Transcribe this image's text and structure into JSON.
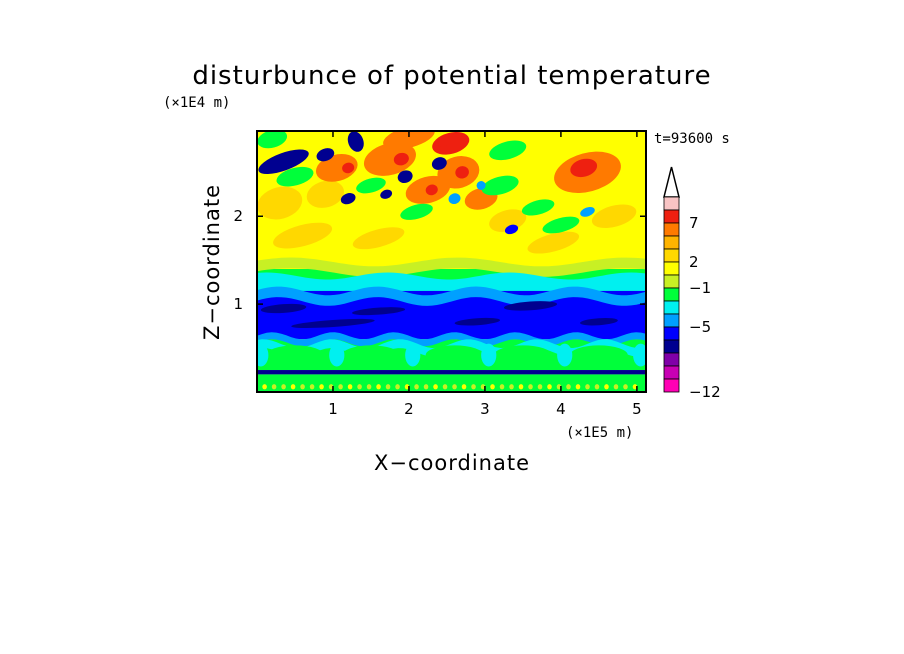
{
  "chart_data": {
    "type": "heatmap",
    "title": "disturbunce of potential temperature",
    "time_label": "t=93600 s",
    "xlabel": "X−coordinate",
    "ylabel": "Z−coordinate",
    "x_scale_label": "(×1E5 m)",
    "y_scale_label": "(×1E4 m)",
    "xlim": [
      0,
      5.12
    ],
    "ylim": [
      0,
      2.97
    ],
    "x_ticks": [
      "1",
      "2",
      "3",
      "4",
      "5"
    ],
    "y_ticks": [
      "1",
      "2"
    ],
    "colorbar": {
      "labels": [
        "7",
        "2",
        "−1",
        "−5",
        "−12"
      ],
      "colors_top_to_bottom": [
        "#f8c4c4",
        "#ee2010",
        "#ff7a00",
        "#ffb400",
        "#ffd800",
        "#ffff00",
        "#c8f024",
        "#00ff3a",
        "#00f0f0",
        "#00a0ff",
        "#0000ff",
        "#000090",
        "#8000a8",
        "#c800b4",
        "#ff00b4"
      ]
    },
    "field_description": "contoured potential temperature perturbation field",
    "layers": [
      {
        "z_range": [
          1.4,
          2.97
        ],
        "pattern": "wave train: alternating warm (red/orange) and cold (blue) cells"
      },
      {
        "z_range": [
          1.15,
          1.4
        ],
        "pattern": "cyan / green transition"
      },
      {
        "z_range": [
          0.6,
          1.15
        ],
        "pattern": "cold anomaly band (blue, dark blue streaks)"
      },
      {
        "z_range": [
          0.25,
          0.6
        ],
        "pattern": "cyan / green cells"
      },
      {
        "z_range": [
          0.0,
          0.25
        ],
        "pattern": "thin dark blue surface layer with green/yellow bottom"
      }
    ]
  }
}
